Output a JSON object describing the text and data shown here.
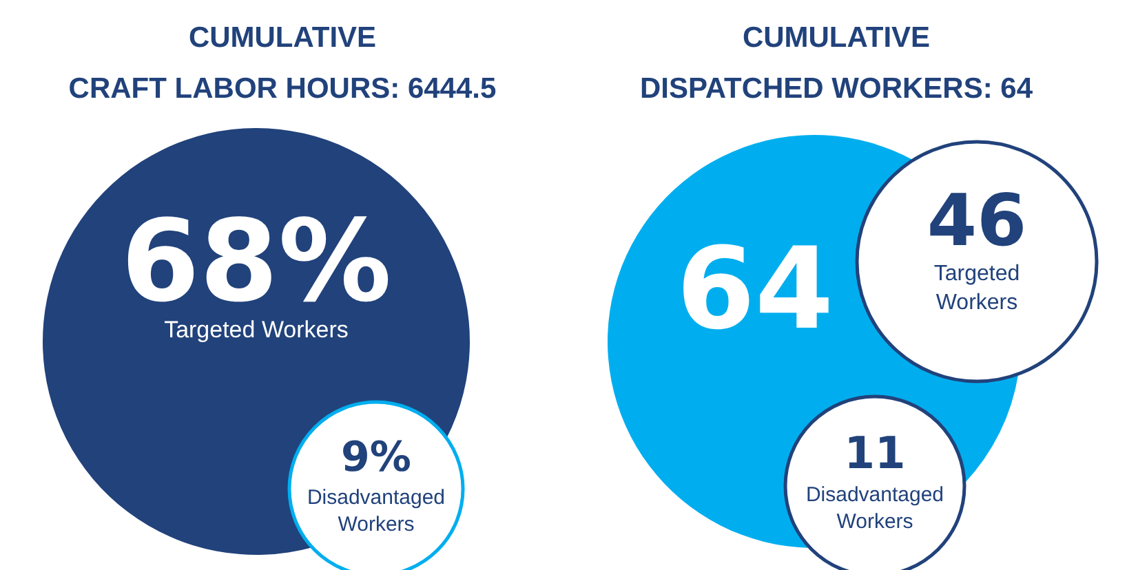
{
  "chart_data": [
    {
      "type": "other",
      "title": "CUMULATIVE\nCRAFT LABOR HOURS: 6444.5",
      "categories": [
        "Targeted Workers",
        "Disadvantaged Workers"
      ],
      "values": [
        68,
        9
      ],
      "value_labels": [
        "68%",
        "9%"
      ],
      "colors": [
        "#21427b",
        "#ffffff"
      ]
    },
    {
      "type": "other",
      "title": "CUMULATIVE\nDISPATCHED WORKERS: 64",
      "categories": [
        null,
        "Targeted Workers",
        "Disadvantaged Workers"
      ],
      "values": [
        64,
        46,
        11
      ],
      "data_labels": true,
      "colors": [
        "#00aeef",
        "#ffffff",
        "#ffffff"
      ]
    }
  ]
}
